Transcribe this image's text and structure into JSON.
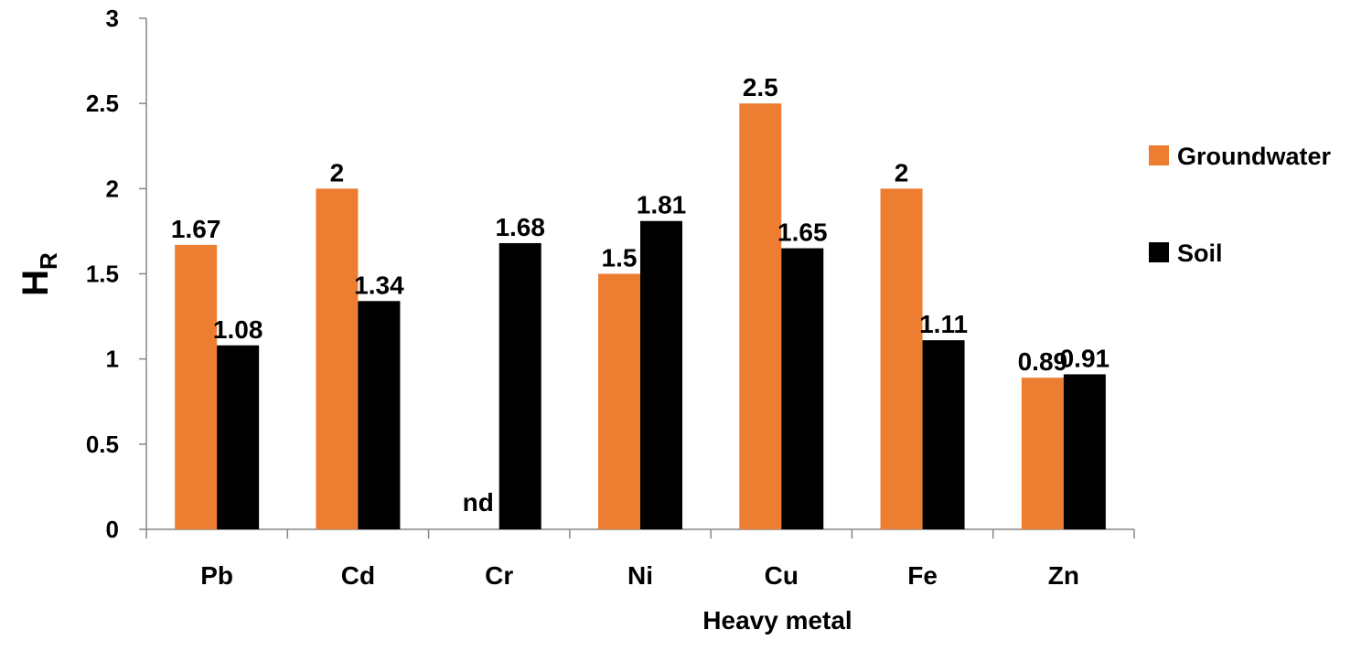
{
  "chart_data": {
    "type": "bar",
    "title": "",
    "xlabel": "Heavy metal",
    "ylabel": {
      "main": "H",
      "sub": "R"
    },
    "ylim": [
      0,
      3
    ],
    "yticks": [
      "0",
      "0.5",
      "1",
      "1.5",
      "2",
      "2.5",
      "3"
    ],
    "grid": false,
    "legend_position": "right",
    "categories": [
      "Pb",
      "Cd",
      "Cr",
      "Ni",
      "Cu",
      "Fe",
      "Zn"
    ],
    "series": [
      {
        "name": "Groundwater",
        "color": "#ED7D31",
        "values": [
          1.67,
          2,
          null,
          1.5,
          2.5,
          2,
          0.89
        ],
        "labels": [
          "1.67",
          "2",
          "nd",
          "1.5",
          "2.5",
          "2",
          "0.89"
        ]
      },
      {
        "name": "Soil",
        "color": "#000000",
        "values": [
          1.08,
          1.34,
          1.68,
          1.81,
          1.65,
          1.11,
          0.91
        ],
        "labels": [
          "1.08",
          "1.34",
          "1.68",
          "1.81",
          "1.65",
          "1.11",
          "0.91"
        ]
      }
    ]
  }
}
